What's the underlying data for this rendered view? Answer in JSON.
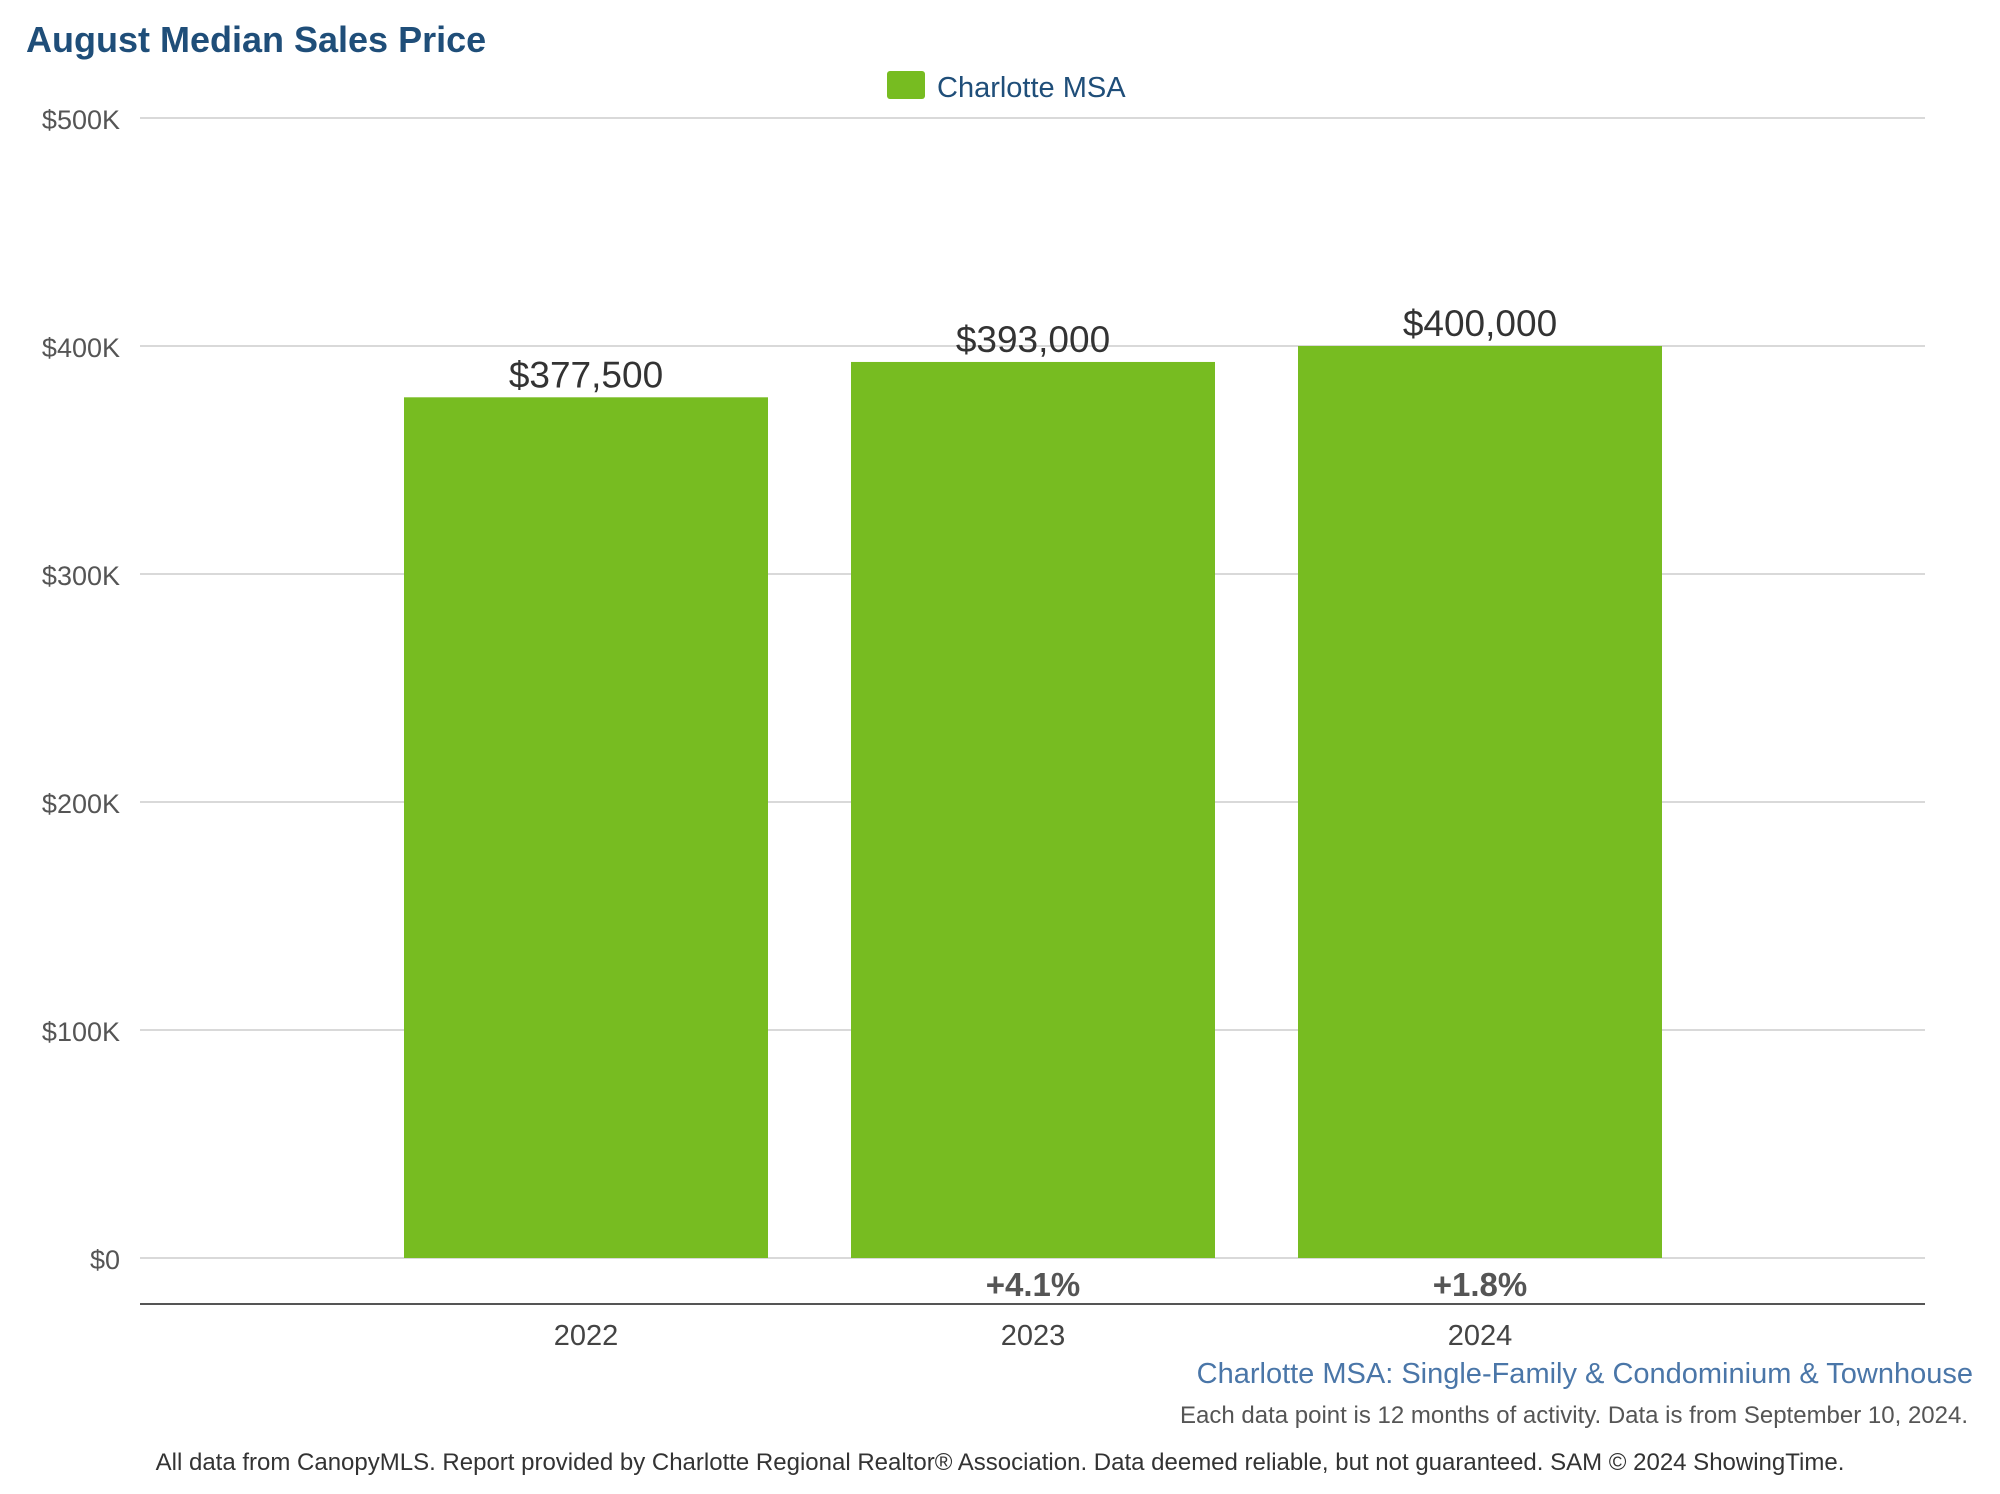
{
  "chart_data": {
    "type": "bar",
    "title": "August Median Sales Price",
    "categories": [
      "2022",
      "2023",
      "2024"
    ],
    "series": [
      {
        "name": "Charlotte MSA",
        "values": [
          377500,
          393000,
          400000
        ],
        "color": "#77bc21"
      }
    ],
    "value_labels": [
      "$377,500",
      "$393,000",
      "$400,000"
    ],
    "change_labels": [
      "",
      "+4.1%",
      "+1.8%"
    ],
    "ylim": [
      0,
      500000
    ],
    "y_ticks": [
      {
        "value": 0,
        "label": "$0"
      },
      {
        "value": 100000,
        "label": "$100K"
      },
      {
        "value": 200000,
        "label": "$200K"
      },
      {
        "value": 300000,
        "label": "$300K"
      },
      {
        "value": 400000,
        "label": "$400K"
      },
      {
        "value": 500000,
        "label": "$500K"
      }
    ],
    "grid": true,
    "legend": "top-center"
  },
  "subtitle": "Charlotte MSA: Single-Family & Condominium & Townhouse",
  "note": "Each data point is 12 months of activity. Data is from September 10, 2024.",
  "footer": "All data from CanopyMLS. Report provided by Charlotte Regional Realtor® Association. Data deemed reliable, but not guaranteed. SAM © 2024 ShowingTime.",
  "colors": {
    "title": "#1f4e79",
    "bar": "#77bc21",
    "subtitle": "#4a76a8"
  }
}
